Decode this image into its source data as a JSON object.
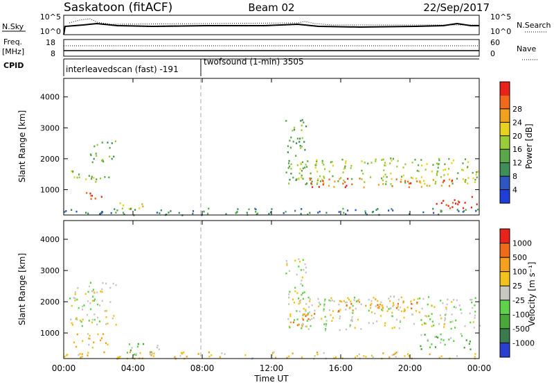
{
  "header": {
    "site": "Saskatoon (fitACF)",
    "beam": "Beam 02",
    "date": "22/Sep/2017"
  },
  "top_panels": {
    "nsky_label": "N.Sky",
    "nsky_ticks": [
      "10^5",
      "10^0"
    ],
    "nsearch_label": "N.Search",
    "freq_label_1": "Freq.",
    "freq_label_2": "[MHz]",
    "freq_ticks": [
      "18",
      "8"
    ],
    "nave_label": "Nave",
    "nave_ticks": [
      "60",
      "0"
    ],
    "cpid_label": "CPID",
    "cpid_segments": [
      {
        "label": "interleavedscan (fast) -191",
        "start_hour": 0
      },
      {
        "label": "twofsound (1-min) 3505",
        "start_hour": 8
      }
    ]
  },
  "chart_data": [
    {
      "type": "heatmap",
      "name": "power",
      "ylabel": "Slant Range [km]",
      "yticks": [
        1000,
        2000,
        3000,
        4000
      ],
      "ylim": [
        180,
        4600
      ],
      "xlim_hours": [
        0,
        24
      ],
      "colorbar_label": "Power [dB]",
      "colorbar_ticks": [
        "4",
        "8",
        "12",
        "16",
        "20",
        "24",
        "28"
      ],
      "colorbar_colors": [
        "#1f3fd6",
        "#2e56c2",
        "#3f8f5a",
        "#5aa84a",
        "#9acc3a",
        "#e9d21f",
        "#f2a11e",
        "#ef6a1a",
        "#e8241a"
      ],
      "regions": [
        {
          "t0": 0.3,
          "t1": 2.6,
          "r0": 1250,
          "r1": 1650,
          "level": 4
        },
        {
          "t0": 1.0,
          "t1": 2.2,
          "r0": 700,
          "r1": 1000,
          "level": 8
        },
        {
          "t0": 1.5,
          "t1": 3.0,
          "r0": 1900,
          "r1": 2650,
          "level": 3
        },
        {
          "t0": 3.2,
          "t1": 5.0,
          "r0": 400,
          "r1": 650,
          "level": 5
        },
        {
          "t0": 0.0,
          "t1": 24.0,
          "r0": 200,
          "r1": 420,
          "level": 2
        },
        {
          "t0": 12.8,
          "t1": 14.0,
          "r0": 1200,
          "r1": 3300,
          "level": 3
        },
        {
          "t0": 13.5,
          "t1": 24.0,
          "r0": 1200,
          "r1": 2050,
          "level": 4
        },
        {
          "t0": 14.0,
          "t1": 22.5,
          "r0": 1100,
          "r1": 1400,
          "level": 7
        },
        {
          "t0": 21.5,
          "t1": 24.0,
          "r0": 400,
          "r1": 800,
          "level": 8
        }
      ]
    },
    {
      "type": "heatmap",
      "name": "velocity",
      "ylabel": "Slant Range [km]",
      "yticks": [
        1000,
        2000,
        3000,
        4000
      ],
      "ylim": [
        180,
        4600
      ],
      "xlim_hours": [
        0,
        24
      ],
      "xlabel": "Time UT",
      "xticks": [
        "00:00",
        "04:00",
        "08:00",
        "12:00",
        "16:00",
        "20:00",
        "00:00"
      ],
      "colorbar_label": "Velocity [m s⁻¹]",
      "colorbar_ticks": [
        "1000",
        "500",
        "100",
        "25",
        "-25",
        "-100",
        "-500",
        "-1000"
      ],
      "colorbar_colors": [
        "#2b3fcf",
        "#3a7a4e",
        "#4aa73a",
        "#5fd24a",
        "#c8c8c0",
        "#f2c31e",
        "#f5a01e",
        "#ef6a1a",
        "#e8241a"
      ],
      "regions": [
        {
          "t0": 0.3,
          "t1": 3.0,
          "r0": 1250,
          "r1": 2650,
          "level": 4
        },
        {
          "t0": 0.5,
          "t1": 2.5,
          "r0": 550,
          "r1": 1050,
          "level": 5
        },
        {
          "t0": 3.5,
          "t1": 5.5,
          "r0": 300,
          "r1": 700,
          "level": 3
        },
        {
          "t0": 0.0,
          "t1": 24.0,
          "r0": 200,
          "r1": 420,
          "level": 5
        },
        {
          "t0": 12.8,
          "t1": 14.0,
          "r0": 1200,
          "r1": 3400,
          "level": 4
        },
        {
          "t0": 13.5,
          "t1": 24.0,
          "r0": 1100,
          "r1": 2200,
          "level": 4
        },
        {
          "t0": 13.0,
          "t1": 14.5,
          "r0": 1200,
          "r1": 1700,
          "level": 6
        },
        {
          "t0": 15.5,
          "t1": 20.5,
          "r0": 1700,
          "r1": 2150,
          "level": 6
        },
        {
          "t0": 20.5,
          "t1": 23.5,
          "r0": 500,
          "r1": 1000,
          "level": 3
        }
      ]
    }
  ]
}
